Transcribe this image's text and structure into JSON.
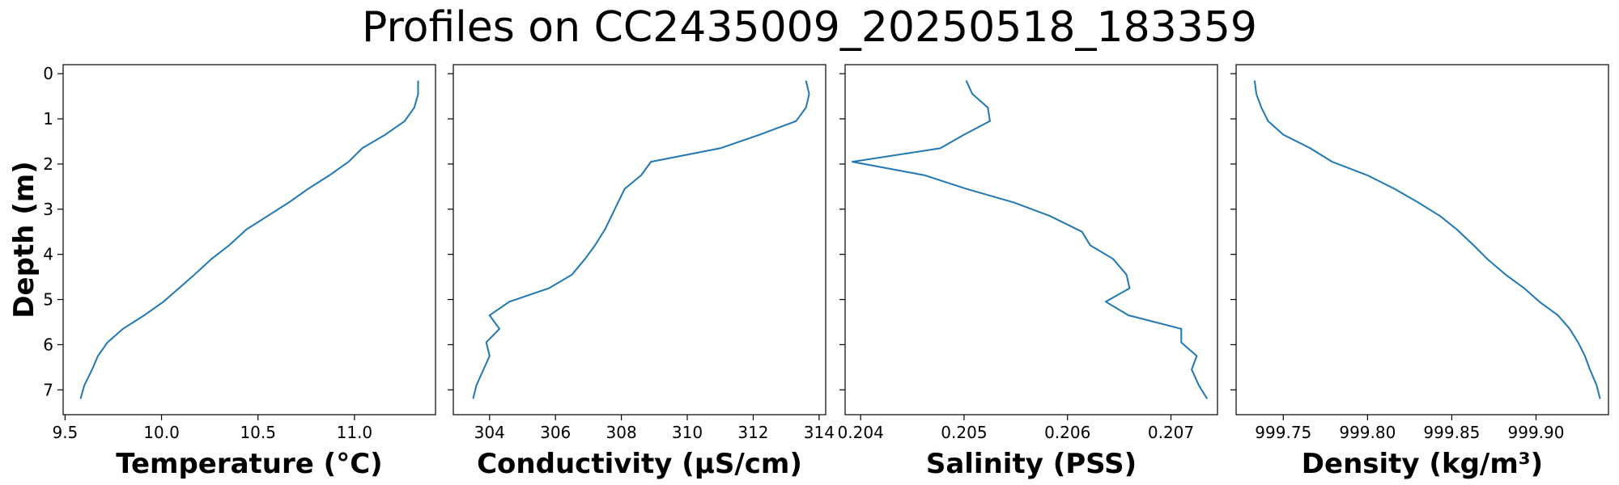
{
  "figure": {
    "title": "Profiles on CC2435009_20250518_183359"
  },
  "chart_data": [
    {
      "type": "line",
      "title": "",
      "xlabel": "Temperature (°C)",
      "ylabel": "Depth (m)",
      "xlim": [
        9.49,
        11.42
      ],
      "ylim": [
        7.55,
        -0.2
      ],
      "xticks": [
        9.5,
        10.0,
        10.5,
        11.0
      ],
      "xtick_labels": [
        "9.5",
        "10.0",
        "10.5",
        "11.0"
      ],
      "yticks": [
        0,
        1,
        2,
        3,
        4,
        5,
        6,
        7
      ],
      "ytick_labels": [
        "0",
        "1",
        "2",
        "3",
        "4",
        "5",
        "6",
        "7"
      ],
      "color": "#1f77b4",
      "series": [
        {
          "x": [
            11.33,
            11.33,
            11.31,
            11.26,
            11.16,
            11.04,
            10.97,
            10.87,
            10.76,
            10.66,
            10.55,
            10.44,
            10.35,
            10.26,
            10.17,
            10.09,
            10.01,
            9.91,
            9.8,
            9.72,
            9.67,
            9.64,
            9.6,
            9.58
          ],
          "y": [
            0.15,
            0.45,
            0.75,
            1.05,
            1.35,
            1.65,
            1.95,
            2.25,
            2.55,
            2.85,
            3.15,
            3.45,
            3.8,
            4.1,
            4.45,
            4.75,
            5.05,
            5.35,
            5.65,
            5.95,
            6.25,
            6.55,
            6.9,
            7.2
          ]
        }
      ]
    },
    {
      "type": "line",
      "title": "",
      "xlabel": "Conductivity (µS/cm)",
      "ylabel": "",
      "xlim": [
        302.9,
        314.2
      ],
      "ylim": [
        7.55,
        -0.2
      ],
      "xticks": [
        304,
        306,
        308,
        310,
        312,
        314
      ],
      "xtick_labels": [
        "304",
        "306",
        "308",
        "310",
        "312",
        "314"
      ],
      "yticks": [
        0,
        1,
        2,
        3,
        4,
        5,
        6,
        7
      ],
      "ytick_labels": [
        "",
        "",
        "",
        "",
        "",
        "",
        "",
        ""
      ],
      "color": "#1f77b4",
      "series": [
        {
          "x": [
            313.6,
            313.7,
            313.6,
            313.3,
            312.2,
            311.0,
            308.9,
            308.6,
            308.1,
            307.9,
            307.7,
            307.5,
            307.2,
            306.9,
            306.5,
            305.8,
            304.6,
            304.0,
            304.3,
            303.9,
            304.0,
            303.6,
            303.5
          ],
          "y": [
            0.15,
            0.45,
            0.75,
            1.05,
            1.35,
            1.65,
            1.95,
            2.25,
            2.55,
            2.85,
            3.15,
            3.45,
            3.8,
            4.1,
            4.45,
            4.75,
            5.05,
            5.35,
            5.65,
            5.95,
            6.25,
            6.9,
            7.2
          ]
        }
      ]
    },
    {
      "type": "line",
      "title": "",
      "xlabel": "Salinity (PSS)",
      "ylabel": "",
      "xlim": [
        0.20385,
        0.20745
      ],
      "ylim": [
        7.55,
        -0.2
      ],
      "xticks": [
        0.204,
        0.205,
        0.206,
        0.207
      ],
      "xtick_labels": [
        "0.204",
        "0.205",
        "0.206",
        "0.207"
      ],
      "yticks": [
        0,
        1,
        2,
        3,
        4,
        5,
        6,
        7
      ],
      "ytick_labels": [
        "",
        "",
        "",
        "",
        "",
        "",
        "",
        ""
      ],
      "color": "#1f77b4",
      "series": [
        {
          "x": [
            0.20502,
            0.20508,
            0.20523,
            0.20525,
            0.205,
            0.20477,
            0.20392,
            0.20462,
            0.20502,
            0.20548,
            0.20583,
            0.20614,
            0.20622,
            0.20644,
            0.20657,
            0.2066,
            0.20637,
            0.20659,
            0.2071,
            0.2071,
            0.20725,
            0.2072,
            0.20727,
            0.20735
          ],
          "y": [
            0.15,
            0.45,
            0.75,
            1.05,
            1.35,
            1.65,
            1.95,
            2.25,
            2.55,
            2.85,
            3.15,
            3.5,
            3.8,
            4.1,
            4.45,
            4.75,
            5.05,
            5.35,
            5.65,
            5.95,
            6.25,
            6.55,
            6.9,
            7.2
          ]
        }
      ]
    },
    {
      "type": "line",
      "title": "",
      "xlabel": "Density (kg/m³)",
      "ylabel": "",
      "xlim": [
        999.722,
        999.943
      ],
      "ylim": [
        7.55,
        -0.2
      ],
      "xticks": [
        999.75,
        999.8,
        999.85,
        999.9
      ],
      "xtick_labels": [
        "999.75",
        "999.80",
        "999.85",
        "999.90"
      ],
      "yticks": [
        0,
        1,
        2,
        3,
        4,
        5,
        6,
        7
      ],
      "ytick_labels": [
        "",
        "",
        "",
        "",
        "",
        "",
        "",
        ""
      ],
      "color": "#1f77b4",
      "series": [
        {
          "x": [
            999.733,
            999.734,
            999.737,
            999.741,
            999.75,
            999.766,
            999.779,
            999.8,
            999.816,
            999.83,
            999.843,
            999.853,
            999.863,
            999.871,
            999.882,
            999.893,
            999.902,
            999.913,
            999.92,
            999.925,
            999.929,
            999.932,
            999.936,
            999.938
          ],
          "y": [
            0.15,
            0.45,
            0.75,
            1.05,
            1.35,
            1.65,
            1.95,
            2.25,
            2.55,
            2.85,
            3.15,
            3.45,
            3.8,
            4.1,
            4.45,
            4.75,
            5.05,
            5.35,
            5.65,
            5.95,
            6.25,
            6.55,
            6.9,
            7.2
          ]
        }
      ]
    }
  ]
}
